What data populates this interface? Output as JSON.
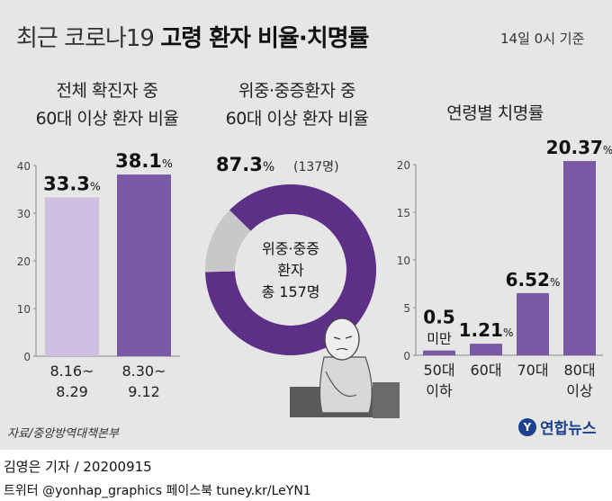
{
  "header": {
    "title_light": "최근 코로나19",
    "title_bold": "고령 환자 비율·치명률",
    "date": "14일 0시 기준"
  },
  "footer": {
    "source": "자료/중앙방역대책본부",
    "logo": "연합뉴스",
    "logo_mark": "Y",
    "byline": "김영은 기자 / 20200915",
    "social": "트위터 @yonhap_graphics  페이스북 tuney.kr/LeYN1"
  },
  "colors": {
    "light_purple": "#cdbfe0",
    "purple": "#7b58a6",
    "dark_purple": "#5e2f86",
    "gray": "#c8c8c8",
    "background": "#e6e6e6"
  },
  "chart_data": [
    {
      "type": "bar",
      "title_lines": [
        "전체 확진자 중",
        "60대 이상 환자 비율"
      ],
      "categories": [
        [
          "8.16~",
          "8.29"
        ],
        [
          "8.30~",
          "9.12"
        ]
      ],
      "values": [
        33.3,
        38.1
      ],
      "value_labels": [
        "33.3",
        "38.1"
      ],
      "unit": "%",
      "yticks": [
        0,
        10,
        20,
        30,
        40
      ],
      "ylim": [
        0,
        40
      ],
      "colors": [
        "#cdbfe0",
        "#7b58a6"
      ]
    },
    {
      "type": "pie",
      "title_lines": [
        "위중·중증환자 중",
        "60대 이상 환자 비율"
      ],
      "value": 87.3,
      "value_label": "87.3",
      "unit": "%",
      "count_label": "(137명)",
      "center_lines": [
        "위중·중증",
        "환자",
        "총 157명"
      ],
      "slices": [
        87.3,
        12.7
      ],
      "colors": [
        "#5e2f86",
        "#c8c8c8"
      ]
    },
    {
      "type": "bar",
      "title_lines": [
        "연령별 치명률"
      ],
      "categories": [
        [
          "50대",
          "이하"
        ],
        [
          "60대"
        ],
        [
          "70대"
        ],
        [
          "80대",
          "이상"
        ]
      ],
      "values": [
        0.5,
        1.21,
        6.52,
        20.37
      ],
      "value_labels": [
        [
          "0.5",
          "미만"
        ],
        [
          "1.21"
        ],
        [
          "6.52"
        ],
        [
          "20.37"
        ]
      ],
      "unit": "%",
      "yticks": [
        0,
        5,
        10,
        15,
        20
      ],
      "ylim": [
        0,
        20
      ],
      "colors": [
        "#7b58a6",
        "#7b58a6",
        "#7b58a6",
        "#7b58a6"
      ]
    }
  ]
}
